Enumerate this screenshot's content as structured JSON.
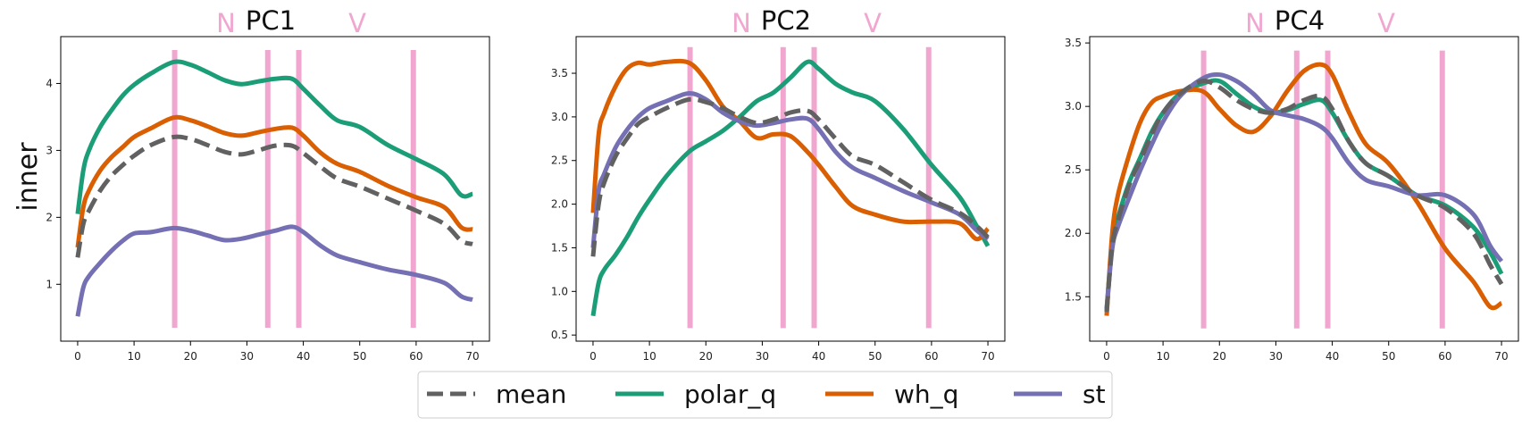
{
  "figure": {
    "ylabel": "inner",
    "legend_position": "bottom-center"
  },
  "series_styles": [
    {
      "name": "mean",
      "color": "#616161",
      "dash": true
    },
    {
      "name": "polar_q",
      "color": "#1b9e77",
      "dash": false
    },
    {
      "name": "wh_q",
      "color": "#d95f02",
      "dash": false
    },
    {
      "name": "st",
      "color": "#7570b3",
      "dash": false
    }
  ],
  "vline_color": "#f1a6d0",
  "chart_data": [
    {
      "type": "line",
      "title": "PC1",
      "title_markers": {
        "left": "N",
        "right": "V"
      },
      "xlim": [
        -3,
        73
      ],
      "ylim": [
        0.15,
        4.7
      ],
      "xticks": [
        0,
        10,
        20,
        30,
        40,
        50,
        60,
        70
      ],
      "yticks": [
        1,
        2,
        3,
        4
      ],
      "vlines": [
        17.2,
        33.7,
        39.2,
        59.5
      ],
      "vline_range": [
        0.35,
        4.5
      ],
      "grid": false,
      "series": [
        {
          "name": "mean",
          "x": [
            0,
            1,
            2,
            4,
            6,
            8,
            10,
            13,
            17,
            20,
            23,
            26,
            29,
            32,
            35,
            38,
            40,
            43,
            46,
            50,
            55,
            60,
            65,
            68,
            70
          ],
          "y": [
            1.4,
            1.9,
            2.1,
            2.4,
            2.62,
            2.78,
            2.92,
            3.08,
            3.2,
            3.17,
            3.08,
            2.98,
            2.94,
            3.0,
            3.07,
            3.07,
            2.96,
            2.76,
            2.58,
            2.46,
            2.28,
            2.1,
            1.9,
            1.65,
            1.6
          ]
        },
        {
          "name": "polar_q",
          "x": [
            0,
            1,
            2,
            4,
            6,
            8,
            10,
            13,
            17,
            20,
            23,
            26,
            29,
            32,
            35,
            38,
            40,
            43,
            46,
            50,
            55,
            60,
            65,
            68,
            70
          ],
          "y": [
            2.05,
            2.7,
            3.0,
            3.35,
            3.6,
            3.82,
            3.98,
            4.15,
            4.32,
            4.28,
            4.17,
            4.05,
            3.99,
            4.03,
            4.07,
            4.07,
            3.92,
            3.67,
            3.45,
            3.35,
            3.08,
            2.87,
            2.64,
            2.33,
            2.35
          ]
        },
        {
          "name": "wh_q",
          "x": [
            0,
            1,
            2,
            4,
            6,
            8,
            10,
            13,
            17,
            20,
            23,
            26,
            29,
            32,
            35,
            38,
            40,
            43,
            46,
            50,
            55,
            60,
            65,
            68,
            70
          ],
          "y": [
            1.55,
            2.15,
            2.4,
            2.7,
            2.9,
            3.05,
            3.2,
            3.33,
            3.49,
            3.45,
            3.36,
            3.26,
            3.22,
            3.27,
            3.32,
            3.34,
            3.22,
            2.97,
            2.8,
            2.68,
            2.47,
            2.3,
            2.15,
            1.85,
            1.82
          ]
        },
        {
          "name": "st",
          "x": [
            0,
            1,
            2,
            4,
            6,
            8,
            10,
            13,
            17,
            20,
            23,
            26,
            29,
            32,
            35,
            38,
            40,
            43,
            46,
            50,
            55,
            60,
            65,
            68,
            70
          ],
          "y": [
            0.52,
            0.95,
            1.12,
            1.32,
            1.5,
            1.65,
            1.76,
            1.78,
            1.84,
            1.8,
            1.73,
            1.66,
            1.68,
            1.74,
            1.8,
            1.86,
            1.78,
            1.58,
            1.43,
            1.33,
            1.22,
            1.14,
            1.02,
            0.82,
            0.77
          ]
        }
      ]
    },
    {
      "type": "line",
      "title": "PC2",
      "title_markers": {
        "left": "N",
        "right": "V"
      },
      "xlim": [
        -3,
        73
      ],
      "ylim": [
        0.43,
        3.92
      ],
      "xticks": [
        0,
        10,
        20,
        30,
        40,
        50,
        60,
        70
      ],
      "yticks": [
        0.5,
        1.0,
        1.5,
        2.0,
        2.5,
        3.0,
        3.5
      ],
      "yticklabels": [
        "0.5",
        "1.0",
        "1.5",
        "2.0",
        "2.5",
        "3.0",
        "3.5"
      ],
      "vlines": [
        17.2,
        33.7,
        39.2,
        59.5
      ],
      "vline_range": [
        0.58,
        3.8
      ],
      "grid": false,
      "series": [
        {
          "name": "mean",
          "x": [
            0,
            1,
            2,
            4,
            6,
            8,
            10,
            13,
            17,
            20,
            23,
            26,
            29,
            32,
            35,
            38,
            40,
            43,
            46,
            50,
            55,
            60,
            65,
            68,
            70
          ],
          "y": [
            1.4,
            2.0,
            2.25,
            2.55,
            2.75,
            2.92,
            3.0,
            3.1,
            3.2,
            3.17,
            3.1,
            3.0,
            2.93,
            2.97,
            3.05,
            3.07,
            2.97,
            2.75,
            2.55,
            2.45,
            2.25,
            2.05,
            1.9,
            1.75,
            1.62
          ]
        },
        {
          "name": "polar_q",
          "x": [
            0,
            1,
            2,
            4,
            6,
            8,
            10,
            13,
            17,
            20,
            23,
            26,
            29,
            32,
            35,
            38,
            40,
            43,
            46,
            50,
            55,
            60,
            65,
            68,
            70
          ],
          "y": [
            0.72,
            1.1,
            1.25,
            1.42,
            1.62,
            1.85,
            2.05,
            2.32,
            2.6,
            2.72,
            2.84,
            3.0,
            3.18,
            3.28,
            3.45,
            3.63,
            3.55,
            3.38,
            3.28,
            3.18,
            2.86,
            2.45,
            2.08,
            1.75,
            1.52
          ]
        },
        {
          "name": "wh_q",
          "x": [
            0,
            1,
            2,
            4,
            6,
            8,
            10,
            13,
            17,
            20,
            23,
            26,
            29,
            32,
            35,
            38,
            40,
            43,
            46,
            50,
            55,
            60,
            65,
            68,
            70
          ],
          "y": [
            1.9,
            2.8,
            3.05,
            3.35,
            3.55,
            3.62,
            3.6,
            3.63,
            3.62,
            3.42,
            3.12,
            2.95,
            2.76,
            2.8,
            2.78,
            2.6,
            2.45,
            2.2,
            1.98,
            1.88,
            1.8,
            1.8,
            1.78,
            1.6,
            1.72
          ]
        },
        {
          "name": "st",
          "x": [
            0,
            1,
            2,
            4,
            6,
            8,
            10,
            13,
            17,
            20,
            23,
            26,
            29,
            32,
            35,
            38,
            40,
            43,
            46,
            50,
            55,
            60,
            65,
            68,
            70
          ],
          "y": [
            1.5,
            2.15,
            2.35,
            2.65,
            2.85,
            3.0,
            3.1,
            3.18,
            3.27,
            3.2,
            3.05,
            2.95,
            2.9,
            2.93,
            2.97,
            2.98,
            2.86,
            2.6,
            2.42,
            2.3,
            2.15,
            2.02,
            1.88,
            1.7,
            1.6
          ]
        }
      ]
    },
    {
      "type": "line",
      "title": "PC4",
      "title_markers": {
        "left": "N",
        "right": "V"
      },
      "xlim": [
        -3,
        73
      ],
      "ylim": [
        1.15,
        3.55
      ],
      "xticks": [
        0,
        10,
        20,
        30,
        40,
        50,
        60,
        70
      ],
      "yticks": [
        1.5,
        2.0,
        2.5,
        3.0,
        3.5
      ],
      "yticklabels": [
        "1.5",
        "2.0",
        "2.5",
        "3.0",
        "3.5"
      ],
      "vlines": [
        17.2,
        33.7,
        39.2,
        59.5
      ],
      "vline_range": [
        1.25,
        3.44
      ],
      "grid": false,
      "series": [
        {
          "name": "mean",
          "x": [
            0,
            1,
            2,
            4,
            6,
            8,
            10,
            13,
            17,
            20,
            23,
            26,
            29,
            32,
            35,
            38,
            40,
            43,
            46,
            50,
            55,
            60,
            65,
            68,
            70
          ],
          "y": [
            1.38,
            1.9,
            2.1,
            2.38,
            2.58,
            2.78,
            2.95,
            3.1,
            3.2,
            3.15,
            3.05,
            2.98,
            2.95,
            2.98,
            3.05,
            3.08,
            2.98,
            2.72,
            2.55,
            2.45,
            2.3,
            2.2,
            2.0,
            1.75,
            1.6
          ]
        },
        {
          "name": "polar_q",
          "x": [
            0,
            1,
            2,
            4,
            6,
            8,
            10,
            13,
            17,
            20,
            23,
            26,
            29,
            32,
            35,
            38,
            40,
            43,
            46,
            50,
            55,
            60,
            65,
            68,
            70
          ],
          "y": [
            1.4,
            1.92,
            2.12,
            2.4,
            2.6,
            2.8,
            2.95,
            3.1,
            3.18,
            3.2,
            3.1,
            3.0,
            2.95,
            2.97,
            3.02,
            3.05,
            2.95,
            2.72,
            2.55,
            2.45,
            2.3,
            2.22,
            2.05,
            1.85,
            1.68
          ]
        },
        {
          "name": "wh_q",
          "x": [
            0,
            1,
            2,
            4,
            6,
            8,
            10,
            13,
            17,
            20,
            23,
            26,
            29,
            32,
            35,
            38,
            40,
            43,
            46,
            50,
            55,
            60,
            65,
            68,
            70
          ],
          "y": [
            1.35,
            2.0,
            2.3,
            2.62,
            2.88,
            3.03,
            3.08,
            3.12,
            3.12,
            2.98,
            2.85,
            2.8,
            2.92,
            3.12,
            3.28,
            3.33,
            3.25,
            2.95,
            2.7,
            2.55,
            2.25,
            1.88,
            1.62,
            1.42,
            1.45
          ]
        },
        {
          "name": "st",
          "x": [
            0,
            1,
            2,
            4,
            6,
            8,
            10,
            13,
            17,
            20,
            23,
            26,
            29,
            32,
            35,
            38,
            40,
            43,
            46,
            50,
            55,
            60,
            65,
            68,
            70
          ],
          "y": [
            1.4,
            1.88,
            2.05,
            2.28,
            2.5,
            2.7,
            2.88,
            3.08,
            3.22,
            3.25,
            3.2,
            3.1,
            2.97,
            2.93,
            2.9,
            2.84,
            2.75,
            2.55,
            2.42,
            2.37,
            2.3,
            2.3,
            2.15,
            1.9,
            1.78
          ]
        }
      ]
    }
  ]
}
